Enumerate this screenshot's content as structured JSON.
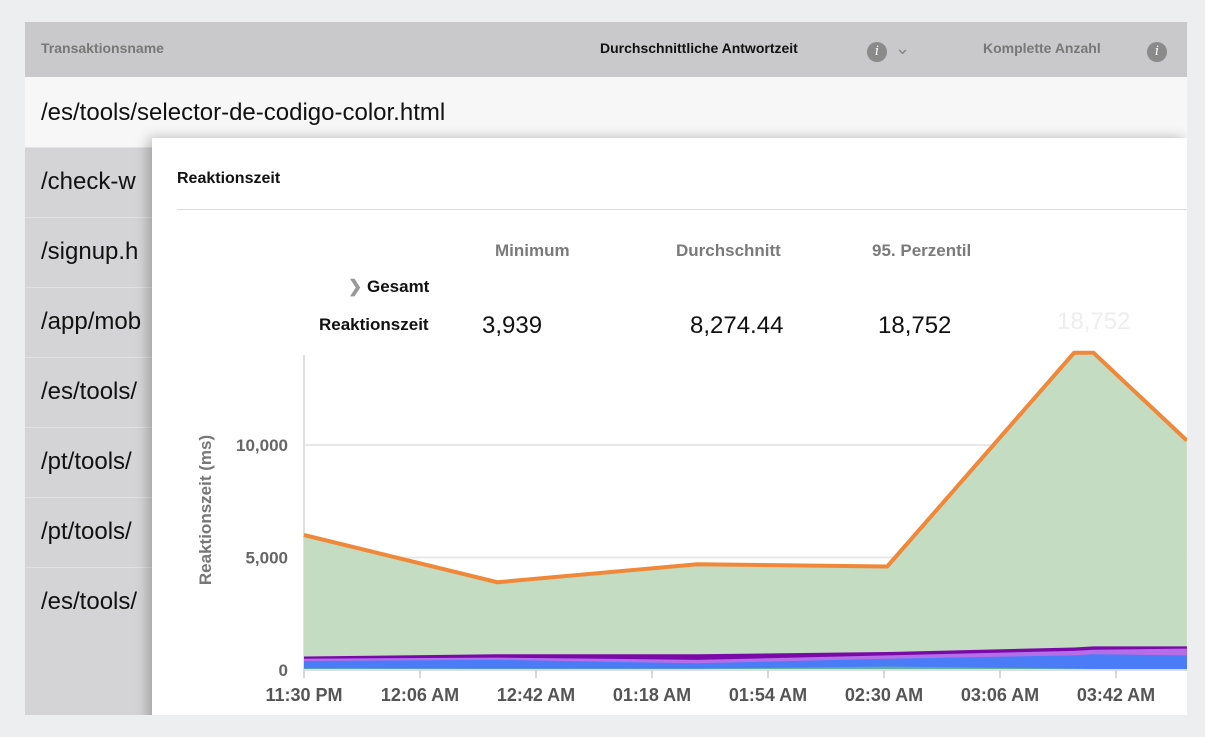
{
  "table": {
    "headers": {
      "name": "Transaktionsname",
      "avg": "Durchschnittliche Antwortzeit",
      "count": "Komplette Anzahl"
    },
    "rows": [
      "/es/tools/selector-de-codigo-color.html",
      "/check-w",
      "/signup.h",
      "/app/mob",
      "/es/tools/",
      "/pt/tools/",
      "/pt/tools/",
      "/es/tools/"
    ]
  },
  "popup": {
    "title": "Reaktionszeit",
    "columns": [
      "Minimum",
      "Durchschnitt",
      "95. Perzentil"
    ],
    "group_label": "Gesamt",
    "row_label": "Reaktionszeit",
    "values": [
      "3,939",
      "8,274.44",
      "18,752"
    ],
    "faded_value": "18,752"
  },
  "colors": {
    "orange": "#f0883a",
    "green_fill": "#c3dcc2",
    "purple": "#7a0aa8",
    "lavender": "#b56ee8",
    "blue": "#4a7cf7",
    "teal": "#5fb0a0"
  },
  "chart_data": {
    "type": "area",
    "ylabel": "Reaktionszeit (ms)",
    "ylim": [
      0,
      14000
    ],
    "yticks": [
      "0",
      "5,000",
      "10,000"
    ],
    "ytick_values": [
      0,
      5000,
      10000
    ],
    "xticks": [
      "11:30 PM",
      "12:06 AM",
      "12:42 AM",
      "01:18 AM",
      "01:54 AM",
      "02:30 AM",
      "03:06 AM",
      "03:42 AM"
    ],
    "x": [
      "11:30 PM",
      "12:30 AM",
      "01:32 AM",
      "02:31 AM",
      "03:29 AM",
      "03:35 AM",
      "04:04 AM"
    ],
    "series": [
      {
        "color": "#f0883a",
        "values": [
          6000,
          3900,
          4700,
          4600,
          14100,
          14100,
          10200
        ]
      },
      {
        "color": "#7a0aa8",
        "values": [
          600,
          700,
          700,
          800,
          1000,
          1050,
          1050
        ]
      },
      {
        "color": "#b56ee8",
        "values": [
          500,
          550,
          450,
          650,
          850,
          900,
          950
        ]
      },
      {
        "color": "#4a7cf7",
        "values": [
          400,
          450,
          300,
          500,
          650,
          700,
          650
        ]
      },
      {
        "color": "#5fb0a0",
        "values": [
          80,
          60,
          60,
          150,
          60,
          40,
          40
        ]
      }
    ]
  }
}
